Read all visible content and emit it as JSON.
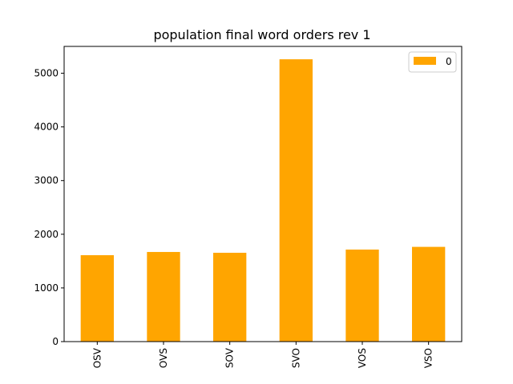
{
  "chart_data": {
    "type": "bar",
    "title": "population final word orders rev 1",
    "xlabel": "",
    "ylabel": "",
    "categories": [
      "OSV",
      "OVS",
      "SOV",
      "SVO",
      "VOS",
      "VSO"
    ],
    "series": [
      {
        "name": "0",
        "values": [
          1610,
          1670,
          1655,
          5260,
          1715,
          1765
        ],
        "color": "#FFA500"
      }
    ],
    "ylim": [
      0,
      5500
    ],
    "yticks": [
      0,
      1000,
      2000,
      3000,
      4000,
      5000
    ],
    "ytick_labels": [
      "0",
      "1000",
      "2000",
      "3000",
      "4000",
      "5000"
    ],
    "grid": false,
    "legend": {
      "placement": "top-right",
      "entries": [
        "0"
      ]
    }
  }
}
